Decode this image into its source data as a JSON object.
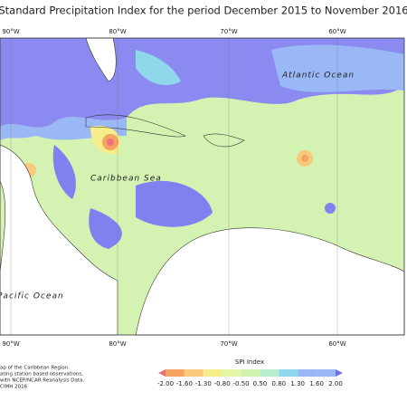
{
  "title": "Standard Precipitation Index for the period December 2015 to November 2016",
  "map": {
    "lon_labels_top": [
      "90°W",
      "80°W",
      "70°W",
      "60°W"
    ],
    "lon_labels_bottom": [
      "90°W",
      "80°W",
      "70°W",
      "60°W"
    ],
    "places": [
      "Atlantic Ocean",
      "Caribbean Sea",
      "Pacific Ocean"
    ]
  },
  "notes": [
    "ap of the Caribbean Region.",
    "ating station based observations,",
    "with NCEP/NCAR Reanalysis Data.",
    "CIMH 2016"
  ],
  "legend": {
    "title": "SPI Index",
    "labels": [
      "-2.00",
      "-1.60",
      "-1.30",
      "-0.80",
      "-0.50",
      "0.50",
      "0.80",
      "1.30",
      "1.60",
      "2.00"
    ]
  }
}
